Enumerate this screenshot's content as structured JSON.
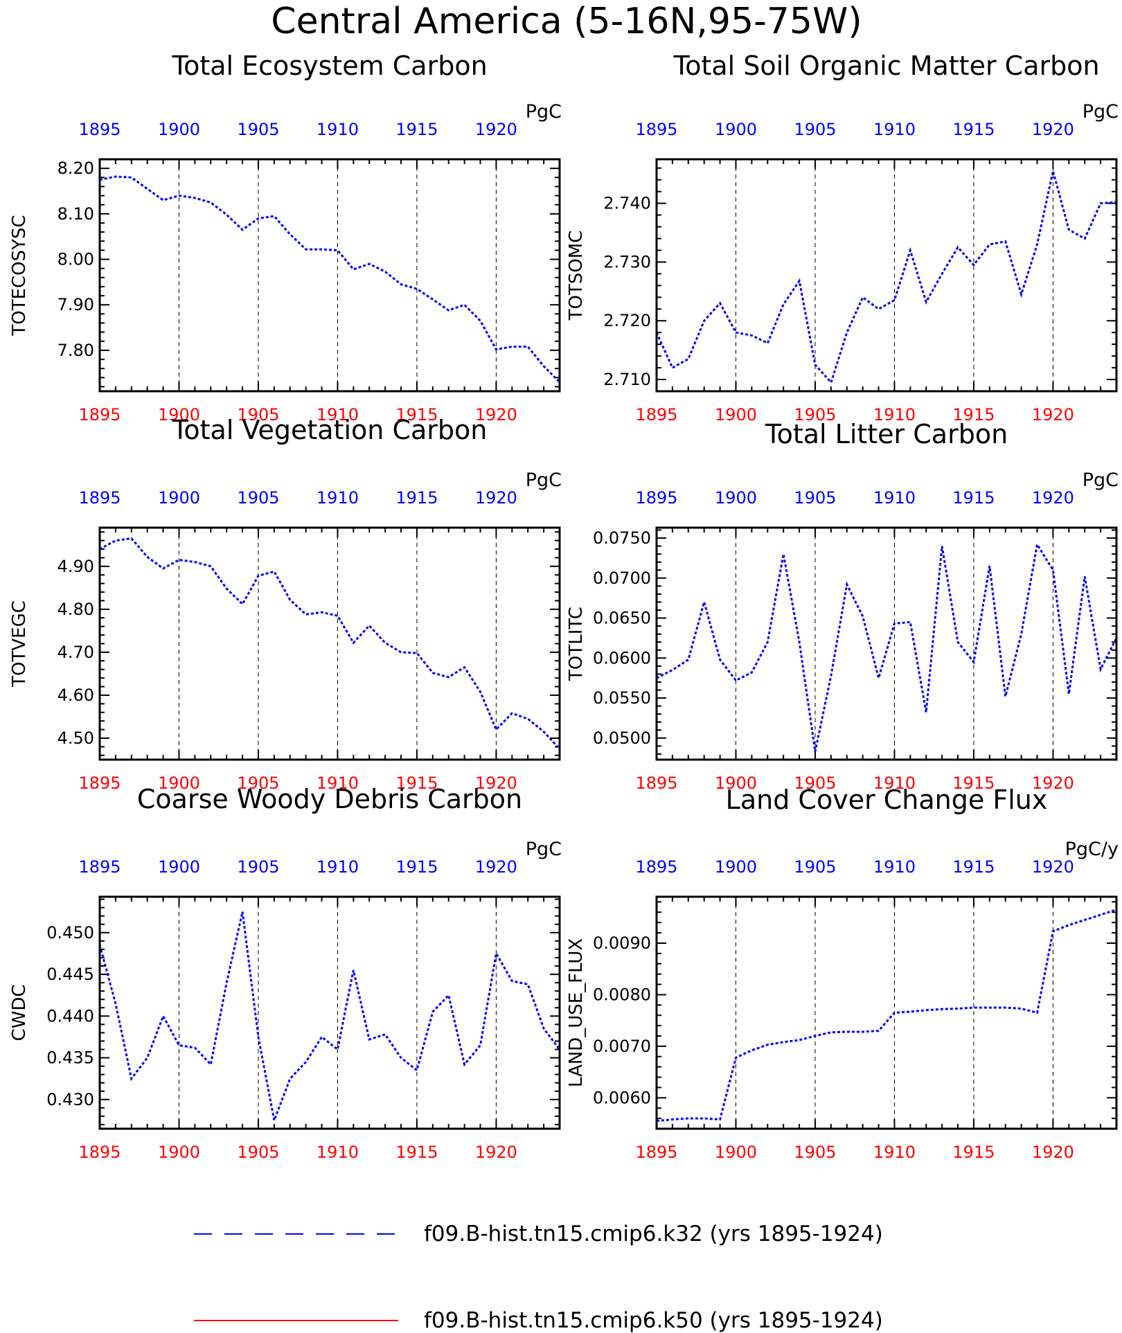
{
  "figure": {
    "title": "Central America (5-16N,95-75W)",
    "colors": {
      "top_axis": "#0000ff",
      "bottom_axis": "#ff0000",
      "series": "#0000ff",
      "frame": "#000000"
    }
  },
  "chart_data": [
    {
      "type": "line",
      "title": "Total Ecosystem Carbon",
      "ylabel": "TOTECOSYSC",
      "units": "PgC",
      "xlim": [
        1895,
        1924
      ],
      "ylim": [
        7.71,
        8.22
      ],
      "yticks": [
        "8.20",
        "8.10",
        "8.00",
        "7.90",
        "7.80"
      ],
      "xtick_labels": [
        "1895",
        "1900",
        "1905",
        "1910",
        "1915",
        "1920"
      ],
      "grid": "vertical-dashed",
      "x": [
        1895,
        1896,
        1897,
        1898,
        1899,
        1900,
        1901,
        1902,
        1903,
        1904,
        1905,
        1906,
        1907,
        1908,
        1909,
        1910,
        1911,
        1912,
        1913,
        1914,
        1915,
        1916,
        1917,
        1918,
        1919,
        1920,
        1921,
        1922,
        1923,
        1924
      ],
      "series": [
        {
          "values": [
            8.175,
            8.182,
            8.18,
            8.155,
            8.13,
            8.14,
            8.135,
            8.125,
            8.098,
            8.065,
            8.09,
            8.095,
            8.055,
            8.022,
            8.022,
            8.02,
            7.978,
            7.99,
            7.973,
            7.945,
            7.935,
            7.912,
            7.888,
            7.9,
            7.865,
            7.802,
            7.808,
            7.808,
            7.765,
            7.73
          ]
        }
      ]
    },
    {
      "type": "line",
      "title": "Total Soil Organic Matter Carbon",
      "ylabel": "TOTSOMC",
      "units": "PgC",
      "xlim": [
        1895,
        1924
      ],
      "ylim": [
        2.708,
        2.7475
      ],
      "yticks": [
        "2.740",
        "2.730",
        "2.720",
        "2.710"
      ],
      "xtick_labels": [
        "1895",
        "1900",
        "1905",
        "1910",
        "1915",
        "1920"
      ],
      "grid": "vertical-dashed",
      "x": [
        1895,
        1896,
        1897,
        1898,
        1899,
        1900,
        1901,
        1902,
        1903,
        1904,
        1905,
        1906,
        1907,
        1908,
        1909,
        1910,
        1911,
        1912,
        1913,
        1914,
        1915,
        1916,
        1917,
        1918,
        1919,
        1920,
        1921,
        1922,
        1923,
        1924
      ],
      "series": [
        {
          "values": [
            2.718,
            2.712,
            2.7135,
            2.72,
            2.723,
            2.718,
            2.7175,
            2.7162,
            2.7228,
            2.7268,
            2.7125,
            2.7095,
            2.718,
            2.724,
            2.722,
            2.7235,
            2.732,
            2.7232,
            2.728,
            2.7325,
            2.7295,
            2.733,
            2.7335,
            2.7245,
            2.733,
            2.7455,
            2.7355,
            2.734,
            2.74,
            2.7402
          ]
        }
      ]
    },
    {
      "type": "line",
      "title": "Total Vegetation Carbon",
      "ylabel": "TOTVEGC",
      "units": "PgC",
      "xlim": [
        1895,
        1924
      ],
      "ylim": [
        4.45,
        4.99
      ],
      "yticks": [
        "4.90",
        "4.80",
        "4.70",
        "4.60",
        "4.50"
      ],
      "xtick_labels": [
        "1895",
        "1900",
        "1905",
        "1910",
        "1915",
        "1920"
      ],
      "grid": "vertical-dashed",
      "x": [
        1895,
        1896,
        1897,
        1898,
        1899,
        1900,
        1901,
        1902,
        1903,
        1904,
        1905,
        1906,
        1907,
        1908,
        1909,
        1910,
        1911,
        1912,
        1913,
        1914,
        1915,
        1916,
        1917,
        1918,
        1919,
        1920,
        1921,
        1922,
        1923,
        1924
      ],
      "series": [
        {
          "values": [
            4.94,
            4.96,
            4.965,
            4.922,
            4.895,
            4.915,
            4.91,
            4.9,
            4.848,
            4.812,
            4.878,
            4.888,
            4.822,
            4.788,
            4.793,
            4.785,
            4.722,
            4.762,
            4.722,
            4.7,
            4.698,
            4.652,
            4.642,
            4.665,
            4.608,
            4.52,
            4.558,
            4.545,
            4.515,
            4.475
          ]
        }
      ]
    },
    {
      "type": "line",
      "title": "Total Litter Carbon",
      "ylabel": "TOTLITC",
      "units": "PgC",
      "xlim": [
        1895,
        1924
      ],
      "ylim": [
        0.0473,
        0.0763
      ],
      "yticks": [
        "0.0750",
        "0.0700",
        "0.0650",
        "0.0600",
        "0.0550",
        "0.0500"
      ],
      "xtick_labels": [
        "1895",
        "1900",
        "1905",
        "1910",
        "1915",
        "1920"
      ],
      "grid": "vertical-dashed",
      "x": [
        1895,
        1896,
        1897,
        1898,
        1899,
        1900,
        1901,
        1902,
        1903,
        1904,
        1905,
        1906,
        1907,
        1908,
        1909,
        1910,
        1911,
        1912,
        1913,
        1914,
        1915,
        1916,
        1917,
        1918,
        1919,
        1920,
        1921,
        1922,
        1923,
        1924
      ],
      "series": [
        {
          "values": [
            0.0575,
            0.0585,
            0.0598,
            0.067,
            0.0598,
            0.0572,
            0.0582,
            0.062,
            0.073,
            0.062,
            0.0483,
            0.0578,
            0.0692,
            0.0652,
            0.0575,
            0.0643,
            0.0645,
            0.0532,
            0.074,
            0.062,
            0.0595,
            0.0715,
            0.0552,
            0.063,
            0.0742,
            0.071,
            0.0555,
            0.0702,
            0.0586,
            0.0625
          ]
        }
      ]
    },
    {
      "type": "line",
      "title": "Coarse Woody Debris Carbon",
      "ylabel": "CWDC",
      "units": "PgC",
      "xlim": [
        1895,
        1924
      ],
      "ylim": [
        0.4265,
        0.4543
      ],
      "yticks": [
        "0.450",
        "0.445",
        "0.440",
        "0.435",
        "0.430"
      ],
      "xtick_labels": [
        "1895",
        "1900",
        "1905",
        "1910",
        "1915",
        "1920"
      ],
      "grid": "vertical-dashed",
      "x": [
        1895,
        1896,
        1897,
        1898,
        1899,
        1900,
        1901,
        1902,
        1903,
        1904,
        1905,
        1906,
        1907,
        1908,
        1909,
        1910,
        1911,
        1912,
        1913,
        1914,
        1915,
        1916,
        1917,
        1918,
        1919,
        1920,
        1921,
        1922,
        1923,
        1924
      ],
      "series": [
        {
          "values": [
            0.4485,
            0.4415,
            0.4325,
            0.435,
            0.44,
            0.4365,
            0.4362,
            0.4342,
            0.444,
            0.4525,
            0.4375,
            0.4275,
            0.4325,
            0.4345,
            0.4375,
            0.436,
            0.4455,
            0.4372,
            0.4378,
            0.435,
            0.4335,
            0.4405,
            0.4425,
            0.4342,
            0.4365,
            0.4475,
            0.4442,
            0.4438,
            0.4385,
            0.436
          ]
        }
      ]
    },
    {
      "type": "line",
      "title": "Land Cover Change Flux",
      "ylabel": "LAND_USE_FLUX",
      "units": "PgC/y",
      "xlim": [
        1895,
        1924
      ],
      "ylim": [
        0.0054,
        0.0099
      ],
      "yticks": [
        "0.0090",
        "0.0080",
        "0.0070",
        "0.0060"
      ],
      "xtick_labels": [
        "1895",
        "1900",
        "1905",
        "1910",
        "1915",
        "1920"
      ],
      "grid": "vertical-dashed",
      "x": [
        1895,
        1896,
        1897,
        1898,
        1899,
        1900,
        1901,
        1902,
        1903,
        1904,
        1905,
        1906,
        1907,
        1908,
        1909,
        1910,
        1911,
        1912,
        1913,
        1914,
        1915,
        1916,
        1917,
        1918,
        1919,
        1920,
        1921,
        1922,
        1923,
        1924
      ],
      "series": [
        {
          "values": [
            0.00555,
            0.00558,
            0.0056,
            0.0056,
            0.00558,
            0.00678,
            0.00692,
            0.00703,
            0.00708,
            0.00712,
            0.0072,
            0.00727,
            0.00728,
            0.00728,
            0.0073,
            0.00765,
            0.00767,
            0.0077,
            0.00772,
            0.00773,
            0.00775,
            0.00775,
            0.00775,
            0.00773,
            0.00765,
            0.00923,
            0.00935,
            0.00945,
            0.00955,
            0.00965
          ]
        }
      ]
    }
  ],
  "legend": {
    "placement": "bottom",
    "items": [
      {
        "label": "f09.B-hist.tn15.cmip6.k32 (yrs 1895-1924)",
        "color": "#0000ff",
        "style": "dashed"
      },
      {
        "label": "f09.B-hist.tn15.cmip6.k50 (yrs 1895-1924)",
        "color": "#ff0000",
        "style": "solid"
      }
    ]
  }
}
